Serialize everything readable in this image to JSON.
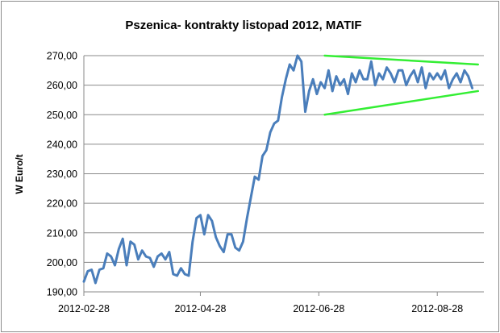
{
  "chart_data": {
    "type": "line",
    "title": "Pszenica- kontrakty listopad 2012, MATIF",
    "xlabel": "",
    "ylabel": "W Euro/t",
    "ylim": [
      190,
      270
    ],
    "yticks": [
      "190,00",
      "200,00",
      "210,00",
      "220,00",
      "230,00",
      "240,00",
      "250,00",
      "260,00",
      "270,00"
    ],
    "xticks": [
      "2012-02-28",
      "2012-04-28",
      "2012-06-28",
      "2012-08-28"
    ],
    "xtick_dates": [
      "2012-02-28",
      "2012-04-28",
      "2012-06-28",
      "2012-08-28"
    ],
    "grid": true,
    "line_color": "#4a7ebb",
    "trend_color": "#33ee33",
    "series": [
      {
        "x": [
          "2012-02-28",
          "2012-03-01",
          "2012-03-03",
          "2012-03-05",
          "2012-03-07",
          "2012-03-09",
          "2012-03-11",
          "2012-03-13",
          "2012-03-15",
          "2012-03-17",
          "2012-03-19",
          "2012-03-21",
          "2012-03-23",
          "2012-03-25",
          "2012-03-27",
          "2012-03-29",
          "2012-03-31",
          "2012-04-02",
          "2012-04-04",
          "2012-04-06",
          "2012-04-08",
          "2012-04-10",
          "2012-04-12",
          "2012-04-14",
          "2012-04-16",
          "2012-04-18",
          "2012-04-20",
          "2012-04-22",
          "2012-04-24",
          "2012-04-26",
          "2012-04-28",
          "2012-04-30",
          "2012-05-02",
          "2012-05-04",
          "2012-05-06",
          "2012-05-08",
          "2012-05-10",
          "2012-05-12",
          "2012-05-14",
          "2012-05-16",
          "2012-05-18",
          "2012-05-20",
          "2012-05-22",
          "2012-05-24",
          "2012-05-26",
          "2012-05-28",
          "2012-05-30",
          "2012-06-01",
          "2012-06-03",
          "2012-06-05",
          "2012-06-07",
          "2012-06-09",
          "2012-06-11",
          "2012-06-13",
          "2012-06-15",
          "2012-06-17",
          "2012-06-19",
          "2012-06-21",
          "2012-06-23",
          "2012-06-25",
          "2012-06-27",
          "2012-06-29",
          "2012-07-01",
          "2012-07-03",
          "2012-07-05",
          "2012-07-07",
          "2012-07-09",
          "2012-07-11",
          "2012-07-13",
          "2012-07-15",
          "2012-07-17",
          "2012-07-19",
          "2012-07-21",
          "2012-07-23",
          "2012-07-25",
          "2012-07-27",
          "2012-07-29",
          "2012-07-31",
          "2012-08-02",
          "2012-08-04",
          "2012-08-06",
          "2012-08-08",
          "2012-08-10",
          "2012-08-12",
          "2012-08-14",
          "2012-08-16",
          "2012-08-18",
          "2012-08-20",
          "2012-08-22",
          "2012-08-24",
          "2012-08-26",
          "2012-08-28",
          "2012-08-30",
          "2012-09-01",
          "2012-09-03",
          "2012-09-05",
          "2012-09-07",
          "2012-09-09",
          "2012-09-11",
          "2012-09-13",
          "2012-09-15"
        ],
        "y": [
          193.5,
          197,
          197.5,
          193,
          197.5,
          198,
          203,
          202,
          199,
          204.5,
          208,
          199,
          207,
          206,
          201,
          204,
          202,
          201.5,
          198.5,
          202,
          203,
          201,
          203.5,
          196,
          195.5,
          198,
          196,
          195.5,
          207,
          215,
          216,
          209.5,
          216,
          214,
          208.5,
          205.5,
          203.5,
          209.5,
          209.5,
          205,
          204,
          207,
          215,
          222,
          229,
          228,
          236,
          238,
          244,
          247,
          248,
          256,
          262,
          267,
          265,
          270,
          268,
          251,
          258,
          262,
          257,
          261,
          259,
          265,
          258,
          263,
          260,
          262,
          257,
          264,
          261,
          265,
          262,
          262,
          268,
          260,
          264,
          262,
          266,
          264,
          261,
          265,
          265,
          260,
          263,
          265,
          261,
          266,
          259,
          264,
          262,
          264,
          262,
          265,
          259,
          262,
          264,
          261,
          265,
          263,
          259
        ]
      }
    ],
    "trendlines": [
      {
        "x": [
          "2012-07-01",
          "2012-09-18"
        ],
        "y": [
          270,
          267
        ]
      },
      {
        "x": [
          "2012-07-01",
          "2012-09-18"
        ],
        "y": [
          250,
          258
        ]
      }
    ]
  }
}
